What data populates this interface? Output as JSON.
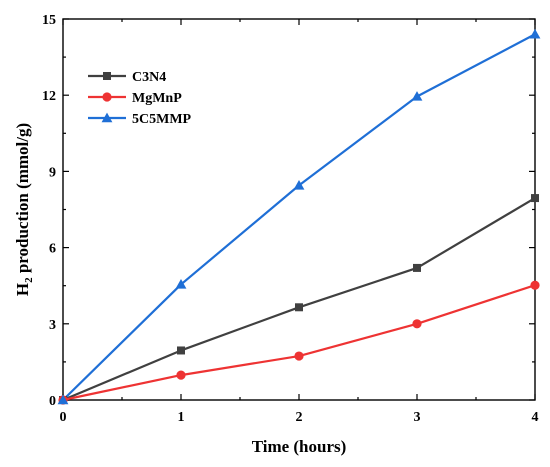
{
  "chart_data": {
    "type": "line",
    "title": "",
    "xlabel": "Time (hours)",
    "ylabel_main": "H",
    "ylabel_sub": "2",
    "ylabel_rest": " production (mmol/g)",
    "x": [
      0,
      1,
      2,
      3,
      4
    ],
    "xlim": [
      0,
      4
    ],
    "ylim": [
      0,
      15
    ],
    "xticks": [
      0,
      1,
      2,
      3,
      4
    ],
    "yticks": [
      0,
      3,
      6,
      9,
      12,
      15
    ],
    "grid": false,
    "legend_position": "top-left",
    "series": [
      {
        "name": "C3N4",
        "color": "#404040",
        "marker": "square",
        "values": [
          0,
          1.95,
          3.65,
          5.2,
          7.95
        ]
      },
      {
        "name": "MgMnP",
        "color": "#ee3333",
        "marker": "circle",
        "values": [
          0,
          0.98,
          1.73,
          3.0,
          4.52
        ]
      },
      {
        "name": "5C5MMP",
        "color": "#1f6fd6",
        "marker": "triangle",
        "values": [
          0,
          4.55,
          8.45,
          11.95,
          14.4
        ]
      }
    ]
  }
}
